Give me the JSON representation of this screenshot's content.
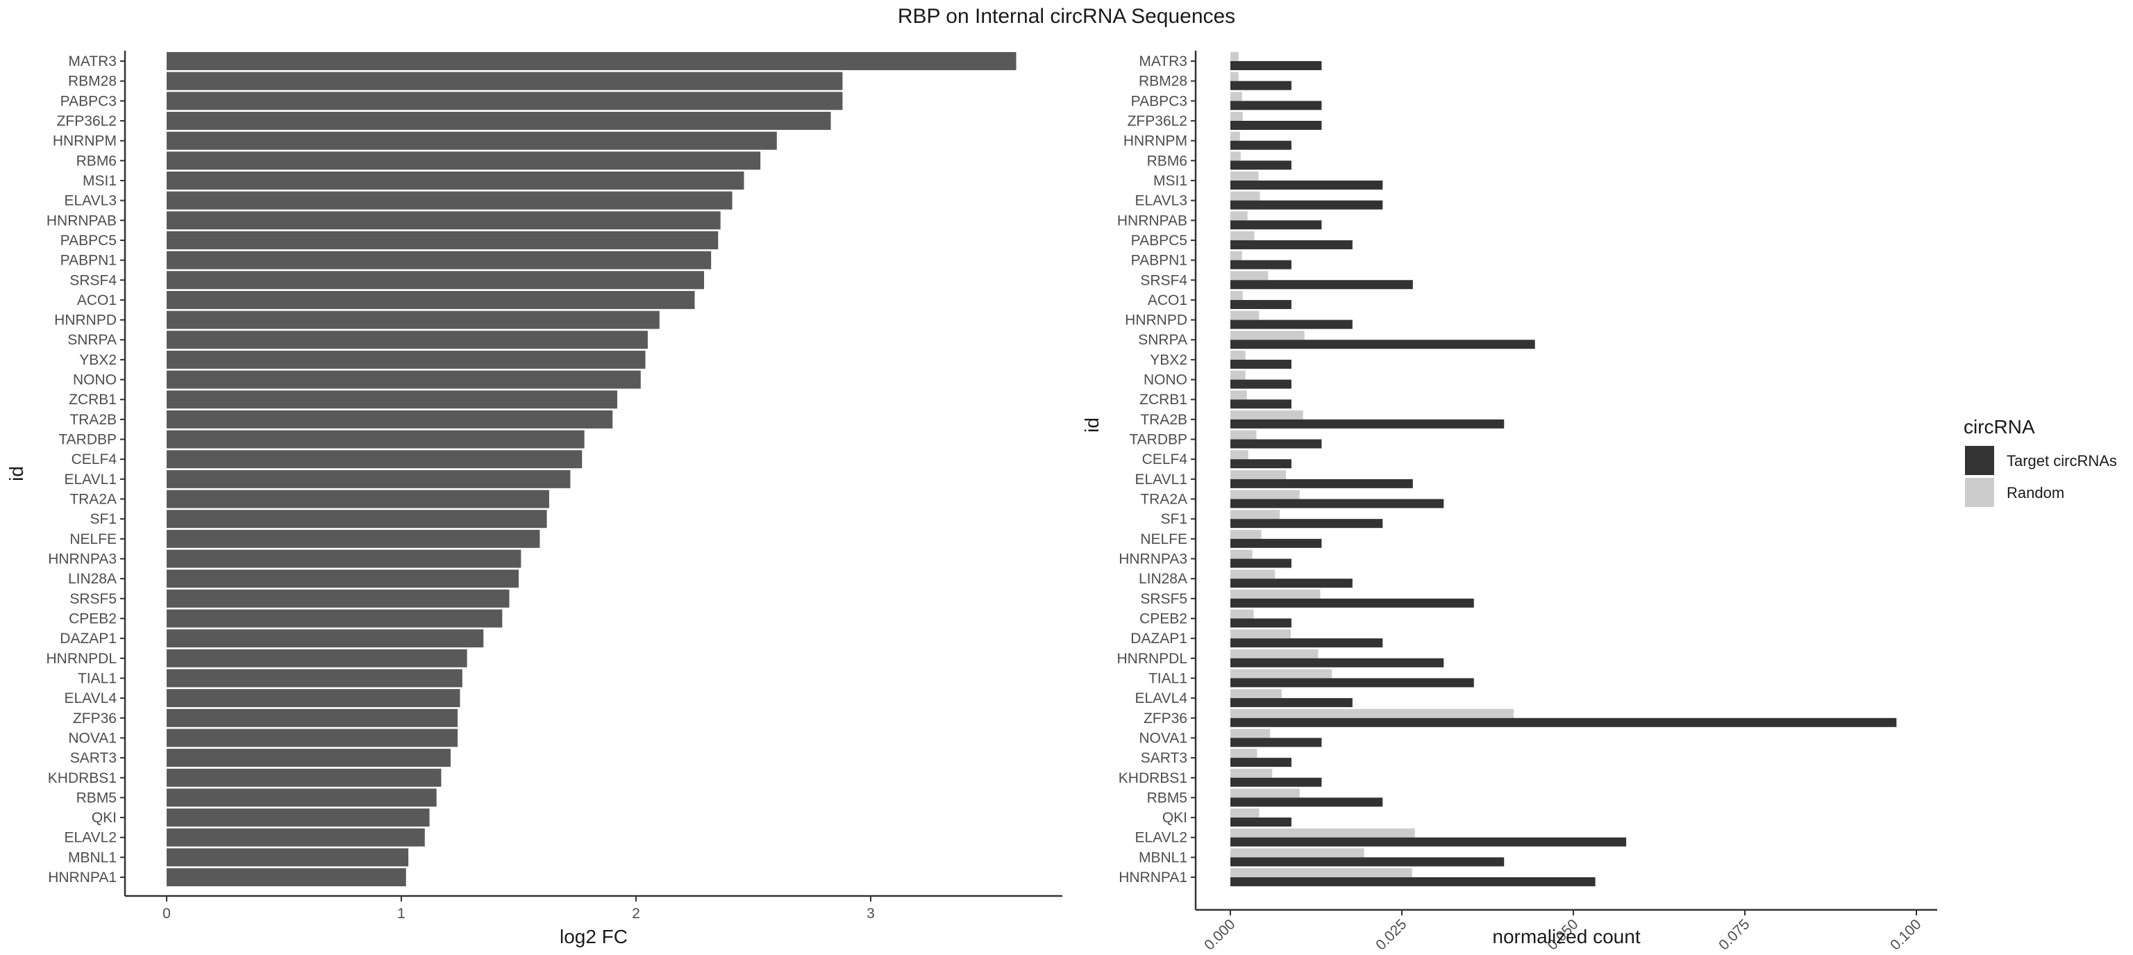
{
  "title": "RBP on Internal circRNA Sequences",
  "chart_data": [
    {
      "type": "bar",
      "orientation": "horizontal",
      "xlabel": "log2 FC",
      "ylabel": "id",
      "xlim": [
        0,
        3.8
      ],
      "xticks": [
        0,
        1,
        2,
        3
      ],
      "bar_color": "#595959",
      "categories": [
        "MATR3",
        "RBM28",
        "PABPC3",
        "ZFP36L2",
        "HNRNPM",
        "RBM6",
        "MSI1",
        "ELAVL3",
        "HNRNPAB",
        "PABPC5",
        "PABPN1",
        "SRSF4",
        "ACO1",
        "HNRNPD",
        "SNRPA",
        "YBX2",
        "NONO",
        "ZCRB1",
        "TRA2B",
        "TARDBP",
        "CELF4",
        "ELAVL1",
        "TRA2A",
        "SF1",
        "NELFE",
        "HNRNPA3",
        "LIN28A",
        "SRSF5",
        "CPEB2",
        "DAZAP1",
        "HNRNPDL",
        "TIAL1",
        "ELAVL4",
        "ZFP36",
        "NOVA1",
        "SART3",
        "KHDRBS1",
        "RBM5",
        "QKI",
        "ELAVL2",
        "MBNL1",
        "HNRNPA1"
      ],
      "values": [
        3.62,
        2.88,
        2.88,
        2.83,
        2.6,
        2.53,
        2.46,
        2.41,
        2.36,
        2.35,
        2.32,
        2.29,
        2.25,
        2.1,
        2.05,
        2.04,
        2.02,
        1.92,
        1.9,
        1.78,
        1.77,
        1.72,
        1.63,
        1.62,
        1.59,
        1.51,
        1.5,
        1.46,
        1.43,
        1.35,
        1.28,
        1.26,
        1.25,
        1.24,
        1.24,
        1.21,
        1.17,
        1.15,
        1.12,
        1.1,
        1.03,
        1.02
      ]
    },
    {
      "type": "bar",
      "orientation": "horizontal",
      "grouped": true,
      "xlabel": "normalized count",
      "ylabel": "id",
      "xlim": [
        0,
        0.1
      ],
      "xticks": [
        "0.000",
        "0.025",
        "0.050",
        "0.075",
        "0.100"
      ],
      "legend": {
        "title": "circRNA",
        "position": "right"
      },
      "categories": [
        "MATR3",
        "RBM28",
        "PABPC3",
        "ZFP36L2",
        "HNRNPM",
        "RBM6",
        "MSI1",
        "ELAVL3",
        "HNRNPAB",
        "PABPC5",
        "PABPN1",
        "SRSF4",
        "ACO1",
        "HNRNPD",
        "SNRPA",
        "YBX2",
        "NONO",
        "ZCRB1",
        "TRA2B",
        "TARDBP",
        "CELF4",
        "ELAVL1",
        "TRA2A",
        "SF1",
        "NELFE",
        "HNRNPA3",
        "LIN28A",
        "SRSF5",
        "CPEB2",
        "DAZAP1",
        "HNRNPDL",
        "TIAL1",
        "ELAVL4",
        "ZFP36",
        "NOVA1",
        "SART3",
        "KHDRBS1",
        "RBM5",
        "QKI",
        "ELAVL2",
        "MBNL1",
        "HNRNPA1"
      ],
      "series": [
        {
          "name": "Target circRNAs",
          "color": "#333333",
          "values": [
            0.0133,
            0.0089,
            0.0133,
            0.0133,
            0.0089,
            0.0089,
            0.0222,
            0.0222,
            0.0133,
            0.0178,
            0.0089,
            0.0266,
            0.0089,
            0.0178,
            0.0444,
            0.0089,
            0.0089,
            0.0089,
            0.0399,
            0.0133,
            0.0089,
            0.0266,
            0.0311,
            0.0222,
            0.0133,
            0.0089,
            0.0178,
            0.0355,
            0.0089,
            0.0222,
            0.0311,
            0.0355,
            0.0178,
            0.0971,
            0.0133,
            0.0089,
            0.0133,
            0.0222,
            0.0089,
            0.0577,
            0.0399,
            0.0532
          ]
        },
        {
          "name": "Random",
          "color": "#cccccc",
          "values": [
            0.0012,
            0.0012,
            0.0017,
            0.0018,
            0.0014,
            0.0015,
            0.0041,
            0.0043,
            0.0025,
            0.0035,
            0.0017,
            0.0055,
            0.0018,
            0.0042,
            0.0108,
            0.0022,
            0.0022,
            0.0024,
            0.0106,
            0.0038,
            0.0026,
            0.0081,
            0.0101,
            0.0072,
            0.0045,
            0.0032,
            0.0065,
            0.0131,
            0.0034,
            0.0088,
            0.0128,
            0.0148,
            0.0075,
            0.0413,
            0.0058,
            0.0039,
            0.0061,
            0.0101,
            0.0042,
            0.0269,
            0.0195,
            0.0265
          ]
        }
      ]
    }
  ]
}
